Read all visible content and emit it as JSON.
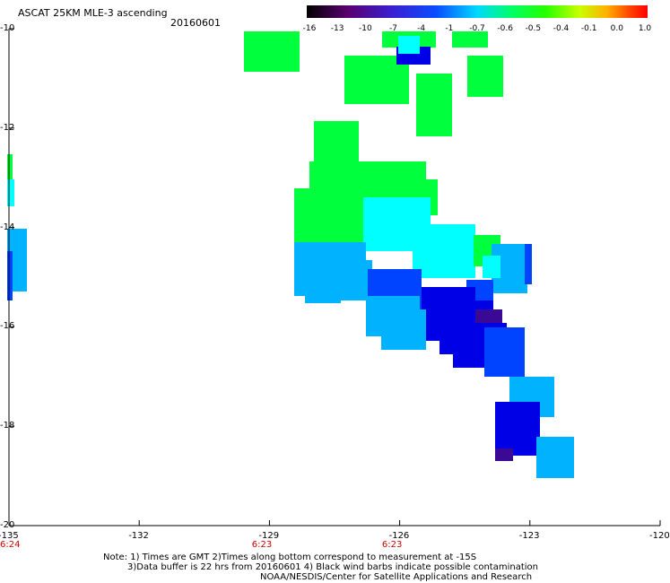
{
  "title": "ASCAT 25KM MLE-3 ascending",
  "date": "20160601",
  "colorbar": {
    "labels": [
      "-16",
      "-13",
      "-10",
      "-7",
      "-4",
      "-1",
      "-0.7",
      "-0.6",
      "-0.5",
      "-0.4",
      "-0.1",
      "0.0",
      "1.0"
    ]
  },
  "axes": {
    "lat_ticks": [
      "-10",
      "-12",
      "-14",
      "-16",
      "-18",
      "-20"
    ],
    "lon_ticks": [
      "-135",
      "-132",
      "-129",
      "-126",
      "-123",
      "-120"
    ],
    "time_labels": [
      {
        "lon": -135,
        "text": "6:24"
      },
      {
        "lon": -129.2,
        "text": "6:23"
      },
      {
        "lon": -126.2,
        "text": "6:23"
      }
    ]
  },
  "notes": {
    "line1": "Note: 1) Times are GMT 2)Times along bottom correspond to measurement at -15S",
    "line2": "3)Data buffer is 22 hrs from 20160601 4) Black wind barbs indicate possible contamination",
    "line3": "NOAA/NESDIS/Center for Satellite Applications and Research"
  },
  "colors": {
    "green": "#00ff3c",
    "cyan": "#00ffff",
    "light_blue": "#00b2ff",
    "blue": "#0044ff",
    "deep_blue": "#0000e6",
    "purple": "#3a0a96",
    "time_label": "#d00000"
  }
}
